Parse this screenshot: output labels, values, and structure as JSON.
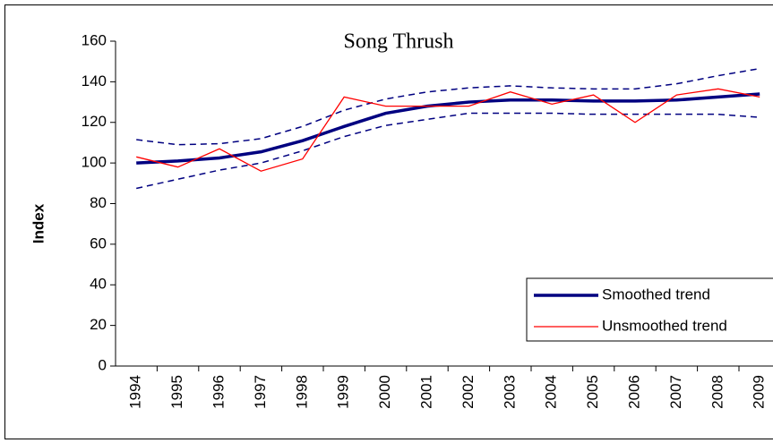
{
  "chart_data": {
    "type": "line",
    "title": "Song Thrush",
    "y_label": "Index",
    "categories": [
      "1994",
      "1995",
      "1996",
      "1997",
      "1998",
      "1999",
      "2000",
      "2001",
      "2002",
      "2003",
      "2004",
      "2005",
      "2006",
      "2007",
      "2008",
      "2009"
    ],
    "series": [
      {
        "name": "Smoothed trend",
        "color": "#000080",
        "values": [
          100,
          101,
          102.5,
          105.5,
          111,
          118,
          124.5,
          128,
          130,
          131,
          131,
          130.5,
          130.5,
          131,
          132.5,
          134
        ]
      },
      {
        "name": "Unsmoothed trend",
        "color": "#ff0000",
        "values": [
          103,
          98,
          107,
          96,
          102,
          132.5,
          128,
          128,
          128,
          135,
          129,
          133.5,
          120,
          133.5,
          136.5,
          132.5
        ]
      }
    ],
    "bands": [
      {
        "color": "#000080",
        "values": [
          111.5,
          109,
          109.5,
          112,
          118,
          126,
          131.5,
          135,
          137,
          138,
          137,
          136.5,
          136.5,
          139,
          143,
          146.5
        ]
      },
      {
        "color": "#000080",
        "values": [
          87.5,
          92,
          96.5,
          100,
          106,
          113,
          118.5,
          121.5,
          124.5,
          124.5,
          124.5,
          124,
          124,
          124,
          124,
          122.5
        ]
      }
    ],
    "ylim": [
      0,
      160
    ],
    "yticks": [
      0,
      20,
      40,
      60,
      80,
      100,
      120,
      140,
      160
    ],
    "grid": false,
    "legend": "right"
  }
}
